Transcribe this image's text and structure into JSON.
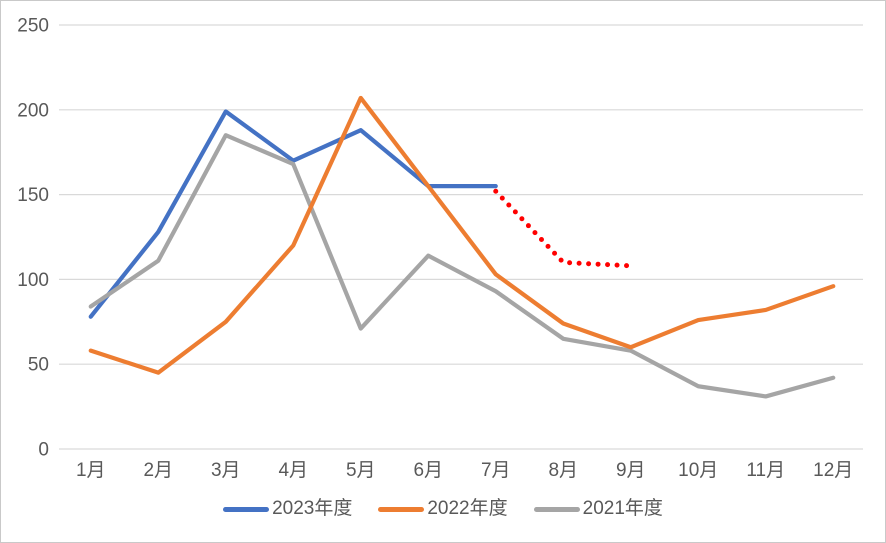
{
  "chart_data": {
    "type": "line",
    "title": "",
    "xlabel": "",
    "ylabel": "",
    "categories": [
      "1月",
      "2月",
      "3月",
      "4月",
      "5月",
      "6月",
      "7月",
      "8月",
      "9月",
      "10月",
      "11月",
      "12月"
    ],
    "series": [
      {
        "name": "2023年度",
        "color": "#4472C4",
        "style": "solid",
        "in_legend": true,
        "values": [
          78,
          128,
          199,
          170,
          188,
          155,
          155,
          null,
          null,
          null,
          null,
          null
        ]
      },
      {
        "name": "2022年度",
        "color": "#ED7D31",
        "style": "solid",
        "in_legend": true,
        "values": [
          58,
          45,
          75,
          120,
          207,
          155,
          103,
          74,
          60,
          76,
          82,
          96
        ]
      },
      {
        "name": "2021年度",
        "color": "#A5A5A5",
        "style": "solid",
        "in_legend": true,
        "values": [
          84,
          111,
          185,
          168,
          71,
          114,
          93,
          65,
          58,
          37,
          31,
          42
        ]
      },
      {
        "name": "",
        "id": "forecast-dotted",
        "color": "#FF0000",
        "style": "dotted",
        "in_legend": false,
        "values": [
          null,
          null,
          null,
          null,
          null,
          null,
          152,
          110,
          108,
          null,
          null,
          null
        ]
      }
    ],
    "ylim": [
      0,
      250
    ],
    "yticks": [
      0,
      50,
      100,
      150,
      200,
      250
    ],
    "grid": "horizontal",
    "legend_position": "bottom"
  },
  "styles": {
    "grid_color": "#D9D9D9",
    "axis_label_color": "#595959",
    "background": "#FFFFFF",
    "border_color": "#C9C9C9"
  }
}
